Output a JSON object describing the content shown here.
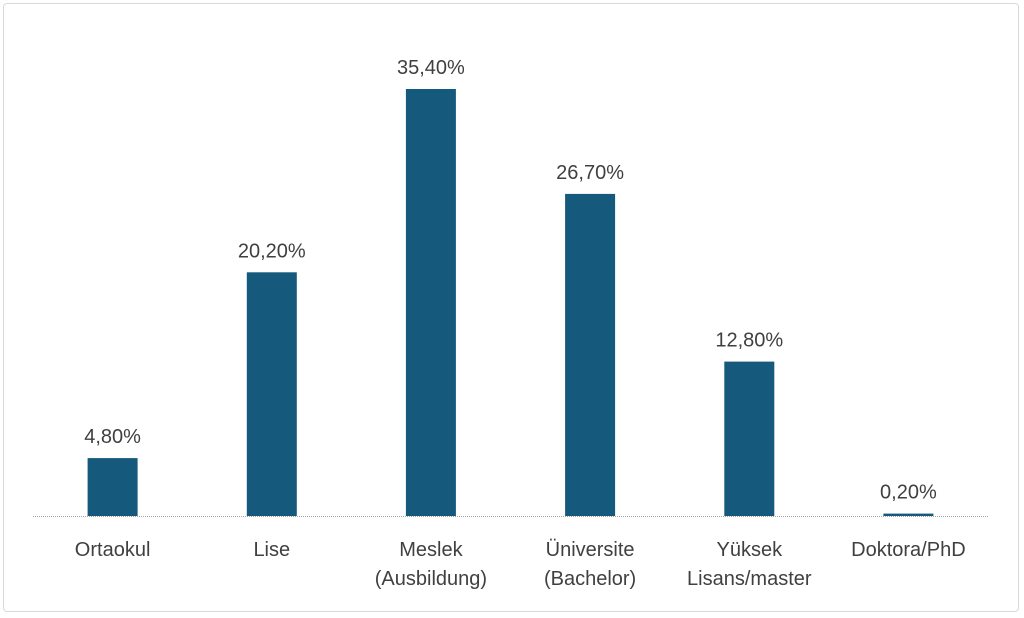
{
  "chart_data": {
    "type": "bar",
    "categories": [
      [
        "Ortaokul"
      ],
      [
        "Lise"
      ],
      [
        "Meslek",
        "(Ausbildung)"
      ],
      [
        "Üniversite",
        "(Bachelor)"
      ],
      [
        "Yüksek",
        "Lisans/master"
      ],
      [
        "Doktora/PhD"
      ]
    ],
    "values": [
      4.8,
      20.2,
      35.4,
      26.7,
      12.8,
      0.2
    ],
    "data_labels": [
      "4,80%",
      "20,20%",
      "35,40%",
      "26,70%",
      "12,80%",
      "0,20%"
    ],
    "title": "",
    "xlabel": "",
    "ylabel": "",
    "ylim": [
      0,
      35.4
    ],
    "grid": false,
    "legend": "none",
    "bar_color": "#155a7d",
    "axis_color": "#a6a6a6",
    "text_color": "#404040"
  }
}
